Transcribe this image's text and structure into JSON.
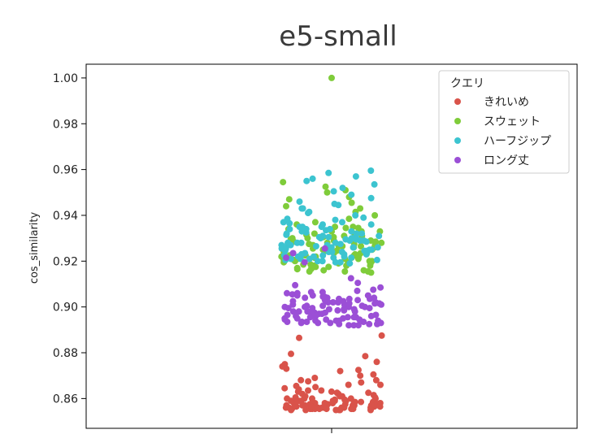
{
  "chart_data": {
    "type": "scatter",
    "subtype": "strip",
    "title": "e5-small",
    "xlabel": "",
    "ylabel": "cos_similarity",
    "ylim": [
      0.847,
      1.006
    ],
    "yticks": [
      0.86,
      0.88,
      0.9,
      0.92,
      0.94,
      0.96,
      0.98,
      1.0
    ],
    "ytick_labels": [
      "0.86",
      "0.88",
      "0.90",
      "0.92",
      "0.94",
      "0.96",
      "0.98",
      "1.00"
    ],
    "grid": false,
    "legend": {
      "title": "クエリ",
      "placement": "top-right"
    },
    "series": [
      {
        "name": "きれいめ",
        "color": "#d9534a",
        "values": [
          0.8795,
          0.8785,
          0.876,
          0.875,
          0.874,
          0.873,
          0.8725,
          0.872,
          0.8705,
          0.87,
          0.869,
          0.868,
          0.8675,
          0.867,
          0.866,
          0.8655,
          0.865,
          0.8645,
          0.8635,
          0.863,
          0.8625,
          0.862,
          0.8615,
          0.861,
          0.8605,
          0.86,
          0.86,
          0.8595,
          0.859,
          0.859,
          0.8585,
          0.858,
          0.858,
          0.8575,
          0.857,
          0.857,
          0.8565,
          0.856,
          0.856,
          0.8555,
          0.8555,
          0.855,
          0.855,
          0.8865,
          0.8875,
          0.858,
          0.859,
          0.857,
          0.861,
          0.863,
          0.8555,
          0.856,
          0.8565,
          0.857,
          0.858,
          0.8595,
          0.86,
          0.862,
          0.864,
          0.866,
          0.868,
          0.8555,
          0.856,
          0.8575,
          0.859,
          0.8605,
          0.8625,
          0.855,
          0.8565,
          0.858,
          0.86,
          0.857,
          0.855,
          0.856,
          0.8585,
          0.861,
          0.8635,
          0.8555,
          0.857,
          0.859,
          0.856,
          0.8575,
          0.855,
          0.8565,
          0.858,
          0.8555,
          0.86,
          0.857,
          0.8555,
          0.856,
          0.8585,
          0.855,
          0.8575,
          0.856,
          0.8565,
          0.859,
          0.857,
          0.8555,
          0.858,
          0.856
        ]
      },
      {
        "name": "スウェット",
        "color": "#7fcc3a",
        "values": [
          1.0,
          0.9545,
          0.9525,
          0.951,
          0.95,
          0.948,
          0.947,
          0.9455,
          0.944,
          0.943,
          0.9415,
          0.94,
          0.9385,
          0.937,
          0.936,
          0.9345,
          0.933,
          0.932,
          0.9305,
          0.9295,
          0.9285,
          0.9275,
          0.9265,
          0.9255,
          0.9245,
          0.9235,
          0.9225,
          0.922,
          0.9215,
          0.921,
          0.9205,
          0.92,
          0.9195,
          0.919,
          0.9185,
          0.918,
          0.9175,
          0.917,
          0.9165,
          0.916,
          0.9155,
          0.915,
          0.929,
          0.931,
          0.927,
          0.925,
          0.923,
          0.921,
          0.919,
          0.933,
          0.935,
          0.928,
          0.926,
          0.924,
          0.922,
          0.92,
          0.918,
          0.93,
          0.932,
          0.934,
          0.9285,
          0.9265,
          0.9245,
          0.9225,
          0.9205,
          0.9185,
          0.9165,
          0.9295,
          0.9315,
          0.9275,
          0.9255,
          0.9235,
          0.9215,
          0.9195,
          0.9175,
          0.9155,
          0.93,
          0.928,
          0.926,
          0.924,
          0.922,
          0.92,
          0.918,
          0.916,
          0.9305,
          0.9265,
          0.9225,
          0.919,
          0.9345,
          0.931,
          0.927,
          0.923,
          0.9195,
          0.9155,
          0.933,
          0.929,
          0.925,
          0.921,
          0.917,
          0.935
        ]
      },
      {
        "name": "ハーフジップ",
        "color": "#3cc4d0",
        "values": [
          0.9595,
          0.9585,
          0.957,
          0.956,
          0.955,
          0.9535,
          0.952,
          0.9505,
          0.949,
          0.9475,
          0.946,
          0.9445,
          0.943,
          0.9415,
          0.94,
          0.9385,
          0.937,
          0.936,
          0.935,
          0.934,
          0.933,
          0.932,
          0.931,
          0.93,
          0.929,
          0.928,
          0.927,
          0.926,
          0.925,
          0.924,
          0.923,
          0.922,
          0.921,
          0.9205,
          0.92,
          0.9195,
          0.919,
          0.93,
          0.928,
          0.926,
          0.924,
          0.922,
          0.931,
          0.929,
          0.927,
          0.925,
          0.923,
          0.921,
          0.9325,
          0.9305,
          0.9285,
          0.9265,
          0.9245,
          0.9225,
          0.9205,
          0.934,
          0.932,
          0.93,
          0.928,
          0.926,
          0.924,
          0.922,
          0.935,
          0.933,
          0.9315,
          0.9295,
          0.9275,
          0.9255,
          0.9235,
          0.9215,
          0.937,
          0.936,
          0.9335,
          0.9295,
          0.927,
          0.9245,
          0.9225,
          0.92,
          0.939,
          0.941,
          0.943,
          0.945,
          0.93,
          0.928,
          0.9255,
          0.9235,
          0.9215,
          0.938,
          0.934,
          0.9305,
          0.9275,
          0.9245,
          0.921,
          0.9365,
          0.932,
          0.929,
          0.926,
          0.923,
          0.9195,
          0.935
        ]
      },
      {
        "name": "ロング丈",
        "color": "#9b4fd6",
        "values": [
          0.9255,
          0.9235,
          0.9215,
          0.9195,
          0.9125,
          0.9105,
          0.9085,
          0.9065,
          0.905,
          0.904,
          0.903,
          0.902,
          0.901,
          0.9,
          0.899,
          0.898,
          0.897,
          0.896,
          0.895,
          0.894,
          0.893,
          0.892,
          0.9095,
          0.9075,
          0.9055,
          0.9035,
          0.9015,
          0.8995,
          0.8975,
          0.8955,
          0.8935,
          0.9045,
          0.9025,
          0.9005,
          0.8985,
          0.8965,
          0.8945,
          0.8925,
          0.906,
          0.902,
          0.9,
          0.898,
          0.896,
          0.894,
          0.892,
          0.9035,
          0.9015,
          0.8995,
          0.8975,
          0.8955,
          0.8935,
          0.905,
          0.903,
          0.901,
          0.899,
          0.897,
          0.895,
          0.893,
          0.9045,
          0.9005,
          0.8965,
          0.8925,
          0.902,
          0.898,
          0.894,
          0.906,
          0.9,
          0.896,
          0.892,
          0.904,
          0.8995,
          0.8955,
          0.8935,
          0.9025,
          0.8985,
          0.8945,
          0.9065,
          0.901,
          0.897,
          0.893,
          0.905,
          0.899,
          0.895,
          0.9035,
          0.8975,
          0.8935,
          0.902,
          0.8965,
          0.8925,
          0.904,
          0.9005,
          0.8945,
          0.907,
          0.9015,
          0.8955,
          0.893,
          0.9025,
          0.898,
          0.894,
          0.9
        ]
      }
    ]
  }
}
